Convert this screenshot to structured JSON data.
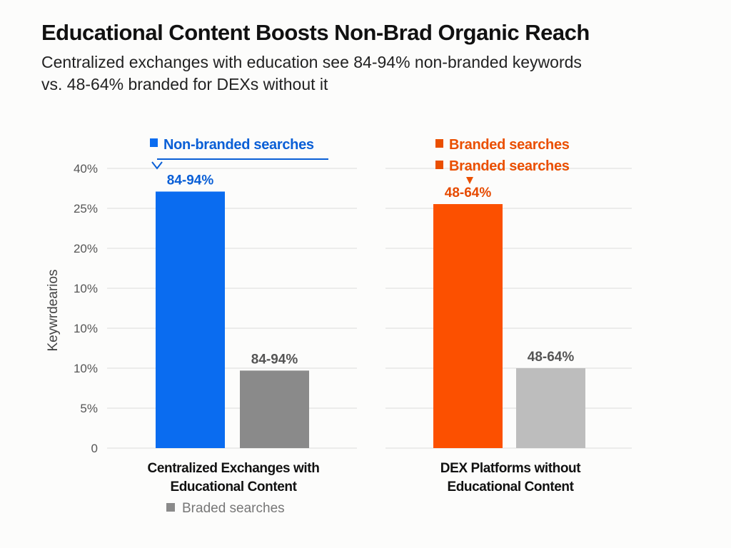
{
  "chart_data": {
    "type": "bar",
    "title": "Educational Content Boosts Non-Brad Organic Reach",
    "subtitle": [
      "Centralized exchanges with education see 84-94% non-branded keywords",
      "vs. 48-64% branded for DEXs without it"
    ],
    "ylabel": "Keywrdearios",
    "yticks": [
      "0",
      "5%",
      "10%",
      "10%",
      "10%",
      "20%",
      "25%",
      "40%"
    ],
    "grid": true,
    "categories": [
      "Centralized Exchanges with Educational Content",
      "DEX Platforms without Educational Content"
    ],
    "category_lines": [
      [
        "Centralized Exchanges with",
        "Educational Content"
      ],
      [
        "DEX Platforms without",
        "Educational Content"
      ]
    ],
    "bars": [
      {
        "category": 0,
        "value": 31.3,
        "label": "84-94%",
        "color": "#0a6cf0",
        "label_color": "#0a5fd6"
      },
      {
        "category": 0,
        "value": 9.7,
        "label": "84-94%",
        "color": "#8a8a8a",
        "label_color": "#555555"
      },
      {
        "category": 1,
        "value": 26.6,
        "label": "48-64%",
        "color": "#fc5000",
        "label_color": "#e64a00"
      },
      {
        "category": 1,
        "value": 10,
        "label": "48-64%",
        "color": "#bdbdbd",
        "label_color": "#555555"
      }
    ],
    "legends": [
      {
        "text": "Non-branded searches",
        "color": "#0a5fd6"
      },
      {
        "text": "Branded searches",
        "color": "#ea4f00"
      },
      {
        "text": "Branded searches",
        "color": "#ea4f00"
      },
      {
        "text": "Braded searches",
        "color": "#8a8a8a"
      }
    ]
  }
}
